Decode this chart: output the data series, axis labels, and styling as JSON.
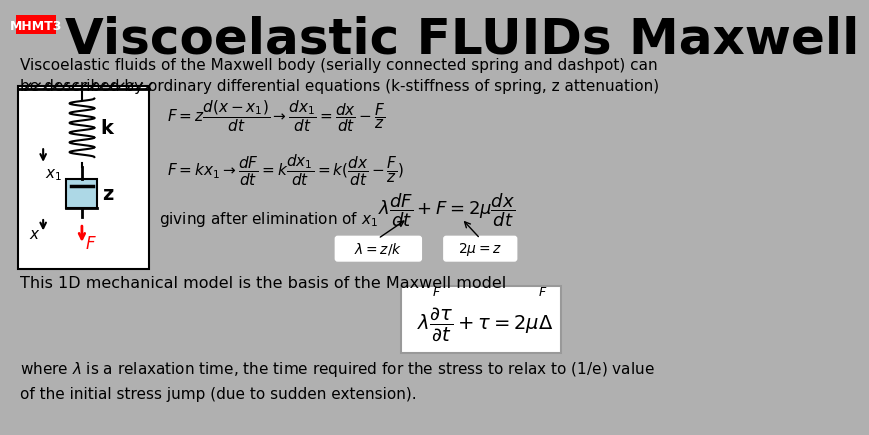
{
  "bg_color": "#b0b0b0",
  "title_badge_color": "#ff0000",
  "title_badge_text": "MHMT3",
  "title_text": "Viscoelastic FLUIDs Maxwell",
  "title_fontsize": 36,
  "badge_fontsize": 9,
  "subtitle": "Viscoelastic fluids of the Maxwell body (serially connected spring and dashpot) can\nbe described by ordinary differential equations (k-stiffness of spring, z attenuation)",
  "subtitle_fontsize": 11,
  "eq1": "$F = z\\dfrac{d(x-x_1)}{dt} \\rightarrow \\dfrac{dx_1}{dt} = \\dfrac{dx}{dt} - \\dfrac{F}{z}$",
  "eq2": "$F = kx_1 \\rightarrow \\dfrac{dF}{dt} = k\\dfrac{dx_1}{dt} = k(\\dfrac{dx}{dt} - \\dfrac{F}{z})$",
  "eq3": "giving after elimination of $x_1$",
  "eq4": "$\\lambda\\dfrac{dF}{dt} + F = 2\\mu\\dfrac{dx}{dt}$",
  "annotation1": "$\\lambda = z/k$",
  "annotation2": "$2\\mu = z$",
  "eq5": "This 1D mechanical model is the basis of the Maxwell model",
  "eq6": "$\\lambda\\dfrac{\\partial\\tau}{\\partial t} + \\tau = 2\\mu\\Delta$",
  "where_text": "where $\\lambda$ is a relaxation time, the time required for the stress to relax to (1/e) value\nof the initial stress jump (due to sudden extension).",
  "where_fontsize": 11
}
